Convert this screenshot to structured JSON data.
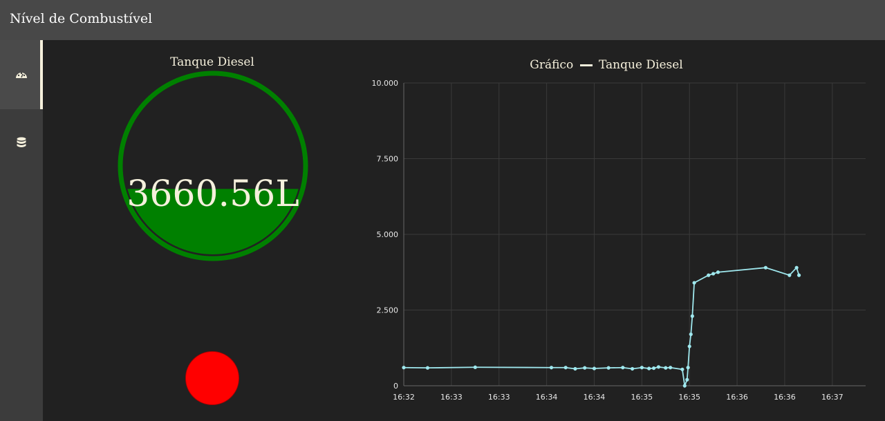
{
  "header": {
    "title": "Nível de Combustível"
  },
  "sidebar": {
    "items": [
      {
        "icon": "dashboard-icon",
        "active": true
      },
      {
        "icon": "database-icon",
        "active": false
      }
    ]
  },
  "gauge": {
    "title": "Tanque Diesel",
    "value_text": "3660.56L",
    "level_fraction": 0.37,
    "color": "#008000"
  },
  "alarm": {
    "color": "#ff0000"
  },
  "chart": {
    "title": "Gráfico",
    "legend_label": "Tanque Diesel",
    "line_color": "#9fe8ee"
  },
  "chart_data": {
    "type": "line",
    "title": "Gráfico",
    "series": [
      {
        "name": "Tanque Diesel",
        "x": [
          0,
          0.5,
          1.5,
          3.1,
          3.4,
          3.6,
          3.8,
          4.0,
          4.3,
          4.6,
          4.8,
          5.0,
          5.15,
          5.25,
          5.35,
          5.5,
          5.6,
          5.85,
          5.9,
          5.95,
          5.97,
          6.0,
          6.03,
          6.06,
          6.1,
          6.4,
          6.5,
          6.6,
          7.6,
          8.1,
          8.25,
          8.3
        ],
        "y": [
          600,
          590,
          610,
          600,
          600,
          560,
          590,
          570,
          590,
          600,
          560,
          600,
          570,
          580,
          620,
          590,
          600,
          540,
          0,
          200,
          600,
          1300,
          1700,
          2300,
          3400,
          3650,
          3700,
          3750,
          3900,
          3650,
          3900,
          3650
        ]
      }
    ],
    "xticks": [
      "16:32",
      "16:33",
      "16:33",
      "16:34",
      "16:34",
      "16:35",
      "16:35",
      "16:36",
      "16:36",
      "16:37"
    ],
    "xlim": [
      0,
      9.7
    ],
    "yticks": [
      "0",
      "2.500",
      "5.000",
      "7.500",
      "10.000"
    ],
    "ylim": [
      0,
      10000
    ],
    "grid": true,
    "legend": "top-center"
  }
}
